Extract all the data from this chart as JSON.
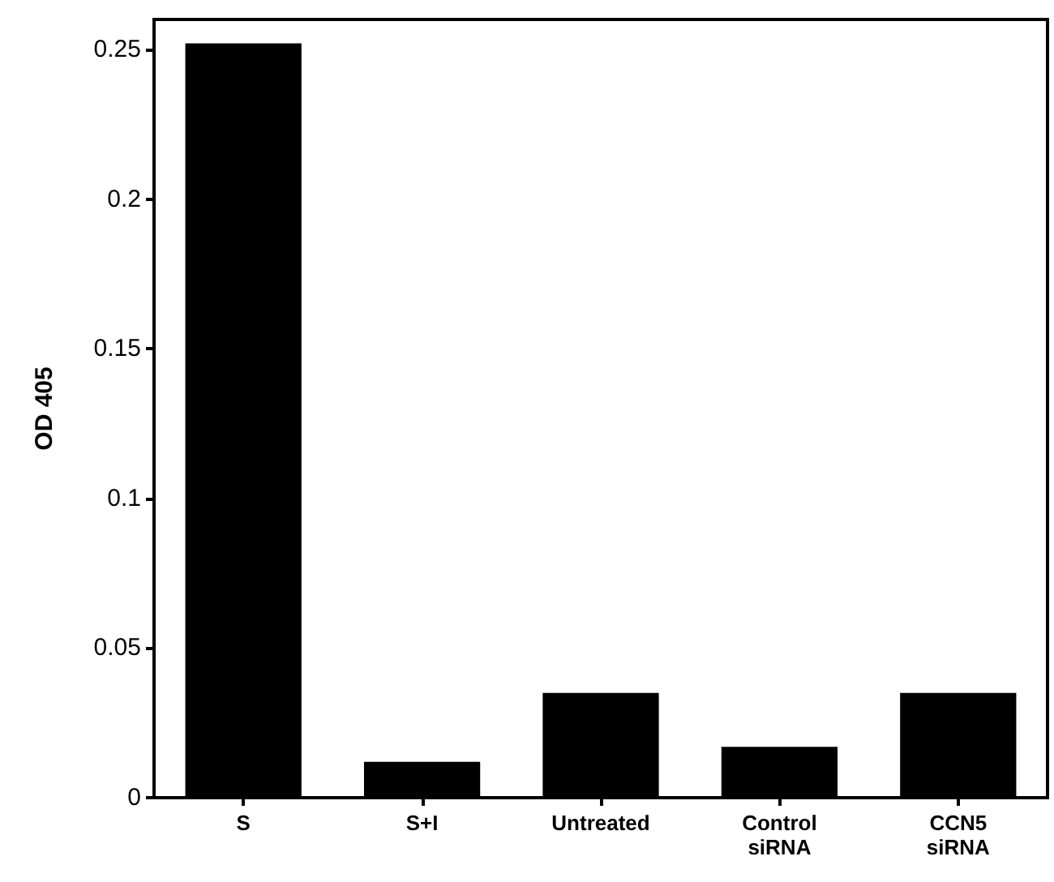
{
  "chart_data": {
    "type": "bar",
    "ylabel": "OD 405",
    "categories": [
      "S",
      "S+I",
      "Untreated",
      "Control\nsiRNA",
      "CCN5\nsiRNA"
    ],
    "values": [
      0.252,
      0.012,
      0.035,
      0.017,
      0.035
    ],
    "color": "#000000",
    "ylim": [
      0,
      0.26
    ],
    "yticks": [
      0,
      0.05,
      0.1,
      0.15,
      0.2,
      0.25
    ],
    "grid": false
  }
}
